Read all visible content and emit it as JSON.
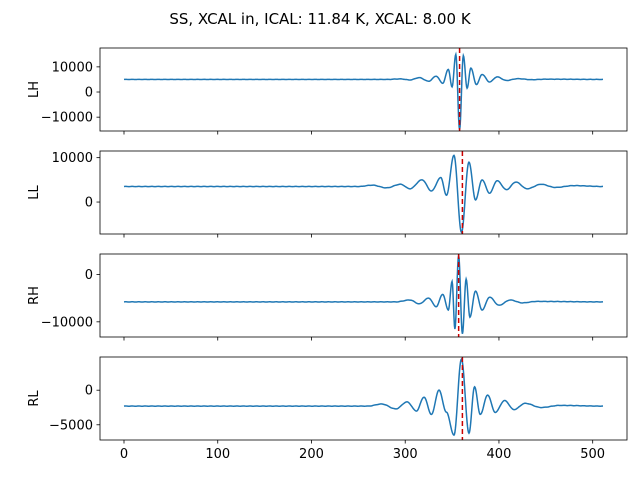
{
  "figure": {
    "title": "SS, XCAL in, ICAL: 11.84 K, XCAL: 8.00 K"
  },
  "chart_data": {
    "type": "line",
    "shared_x": {
      "label": "",
      "ticks": [
        0,
        100,
        200,
        300,
        400,
        500
      ],
      "range": [
        -25.6,
        536.6
      ]
    },
    "series_color": "#1f77b4",
    "marker_color": "#cc0000",
    "panels": [
      {
        "ylabel": "LH",
        "y_ticks": [
          -10000,
          0,
          10000
        ],
        "y_tick_labels": [
          "−10000",
          "0",
          "10000"
        ],
        "ylim": [
          -15500,
          17500
        ],
        "baseline": 5000,
        "marker_x": 358,
        "signal": [
          {
            "x": 0,
            "y": 5000
          },
          {
            "x": 280,
            "y": 5000
          },
          {
            "x": 295,
            "y": 5200
          },
          {
            "x": 305,
            "y": 4800
          },
          {
            "x": 315,
            "y": 5700
          },
          {
            "x": 325,
            "y": 4300
          },
          {
            "x": 333,
            "y": 6300
          },
          {
            "x": 340,
            "y": 3500
          },
          {
            "x": 346,
            "y": 9000
          },
          {
            "x": 350,
            "y": 2000
          },
          {
            "x": 354,
            "y": 15000
          },
          {
            "x": 358,
            "y": -15000
          },
          {
            "x": 362,
            "y": 14500
          },
          {
            "x": 366,
            "y": 1500
          },
          {
            "x": 370,
            "y": 9500
          },
          {
            "x": 376,
            "y": 3000
          },
          {
            "x": 382,
            "y": 7000
          },
          {
            "x": 390,
            "y": 4000
          },
          {
            "x": 398,
            "y": 6000
          },
          {
            "x": 408,
            "y": 4600
          },
          {
            "x": 420,
            "y": 5300
          },
          {
            "x": 435,
            "y": 4900
          },
          {
            "x": 450,
            "y": 5100
          },
          {
            "x": 511,
            "y": 5000
          }
        ]
      },
      {
        "ylabel": "LL",
        "y_ticks": [
          0,
          10000
        ],
        "y_tick_labels": [
          "0",
          "10000"
        ],
        "ylim": [
          -7200,
          11500
        ],
        "baseline": 3500,
        "marker_x": 361,
        "signal": [
          {
            "x": 0,
            "y": 3500
          },
          {
            "x": 250,
            "y": 3500
          },
          {
            "x": 265,
            "y": 3800
          },
          {
            "x": 280,
            "y": 3200
          },
          {
            "x": 295,
            "y": 4000
          },
          {
            "x": 305,
            "y": 3000
          },
          {
            "x": 318,
            "y": 5000
          },
          {
            "x": 328,
            "y": 2500
          },
          {
            "x": 338,
            "y": 5500
          },
          {
            "x": 344,
            "y": 1500
          },
          {
            "x": 352,
            "y": 10500
          },
          {
            "x": 360,
            "y": -6800
          },
          {
            "x": 368,
            "y": 9000
          },
          {
            "x": 375,
            "y": 500
          },
          {
            "x": 382,
            "y": 5000
          },
          {
            "x": 390,
            "y": 2000
          },
          {
            "x": 398,
            "y": 4800
          },
          {
            "x": 408,
            "y": 2800
          },
          {
            "x": 418,
            "y": 4500
          },
          {
            "x": 430,
            "y": 3000
          },
          {
            "x": 445,
            "y": 4000
          },
          {
            "x": 460,
            "y": 3300
          },
          {
            "x": 480,
            "y": 3700
          },
          {
            "x": 511,
            "y": 3500
          }
        ]
      },
      {
        "ylabel": "RH",
        "y_ticks": [
          -10000,
          0
        ],
        "y_tick_labels": [
          "−10000",
          "0"
        ],
        "ylim": [
          -13200,
          4300
        ],
        "baseline": -5800,
        "marker_x": 357,
        "signal": [
          {
            "x": 0,
            "y": -5800
          },
          {
            "x": 290,
            "y": -5800
          },
          {
            "x": 305,
            "y": -5400
          },
          {
            "x": 315,
            "y": -6200
          },
          {
            "x": 325,
            "y": -5000
          },
          {
            "x": 333,
            "y": -6800
          },
          {
            "x": 340,
            "y": -4200
          },
          {
            "x": 346,
            "y": -7500
          },
          {
            "x": 350,
            "y": -1500
          },
          {
            "x": 353,
            "y": -11500
          },
          {
            "x": 357,
            "y": 4000
          },
          {
            "x": 361,
            "y": -12500
          },
          {
            "x": 365,
            "y": -1000
          },
          {
            "x": 369,
            "y": -9000
          },
          {
            "x": 375,
            "y": -3500
          },
          {
            "x": 382,
            "y": -7500
          },
          {
            "x": 390,
            "y": -4800
          },
          {
            "x": 400,
            "y": -6500
          },
          {
            "x": 412,
            "y": -5400
          },
          {
            "x": 425,
            "y": -6000
          },
          {
            "x": 440,
            "y": -5700
          },
          {
            "x": 511,
            "y": -5800
          }
        ]
      },
      {
        "ylabel": "RL",
        "y_ticks": [
          -5000,
          0
        ],
        "y_tick_labels": [
          "−5000",
          "0"
        ],
        "ylim": [
          -7200,
          4800
        ],
        "baseline": -2300,
        "marker_x": 361,
        "signal": [
          {
            "x": 0,
            "y": -2300
          },
          {
            "x": 260,
            "y": -2300
          },
          {
            "x": 275,
            "y": -2000
          },
          {
            "x": 290,
            "y": -2700
          },
          {
            "x": 302,
            "y": -1700
          },
          {
            "x": 312,
            "y": -3000
          },
          {
            "x": 320,
            "y": -1000
          },
          {
            "x": 328,
            "y": -3500
          },
          {
            "x": 336,
            "y": 0
          },
          {
            "x": 344,
            "y": -3200
          },
          {
            "x": 352,
            "y": -6500
          },
          {
            "x": 360,
            "y": 4500
          },
          {
            "x": 368,
            "y": -6200
          },
          {
            "x": 374,
            "y": 500
          },
          {
            "x": 380,
            "y": -3500
          },
          {
            "x": 388,
            "y": -700
          },
          {
            "x": 396,
            "y": -3200
          },
          {
            "x": 406,
            "y": -1500
          },
          {
            "x": 416,
            "y": -2800
          },
          {
            "x": 428,
            "y": -1900
          },
          {
            "x": 445,
            "y": -2500
          },
          {
            "x": 465,
            "y": -2200
          },
          {
            "x": 511,
            "y": -2300
          }
        ]
      }
    ]
  }
}
